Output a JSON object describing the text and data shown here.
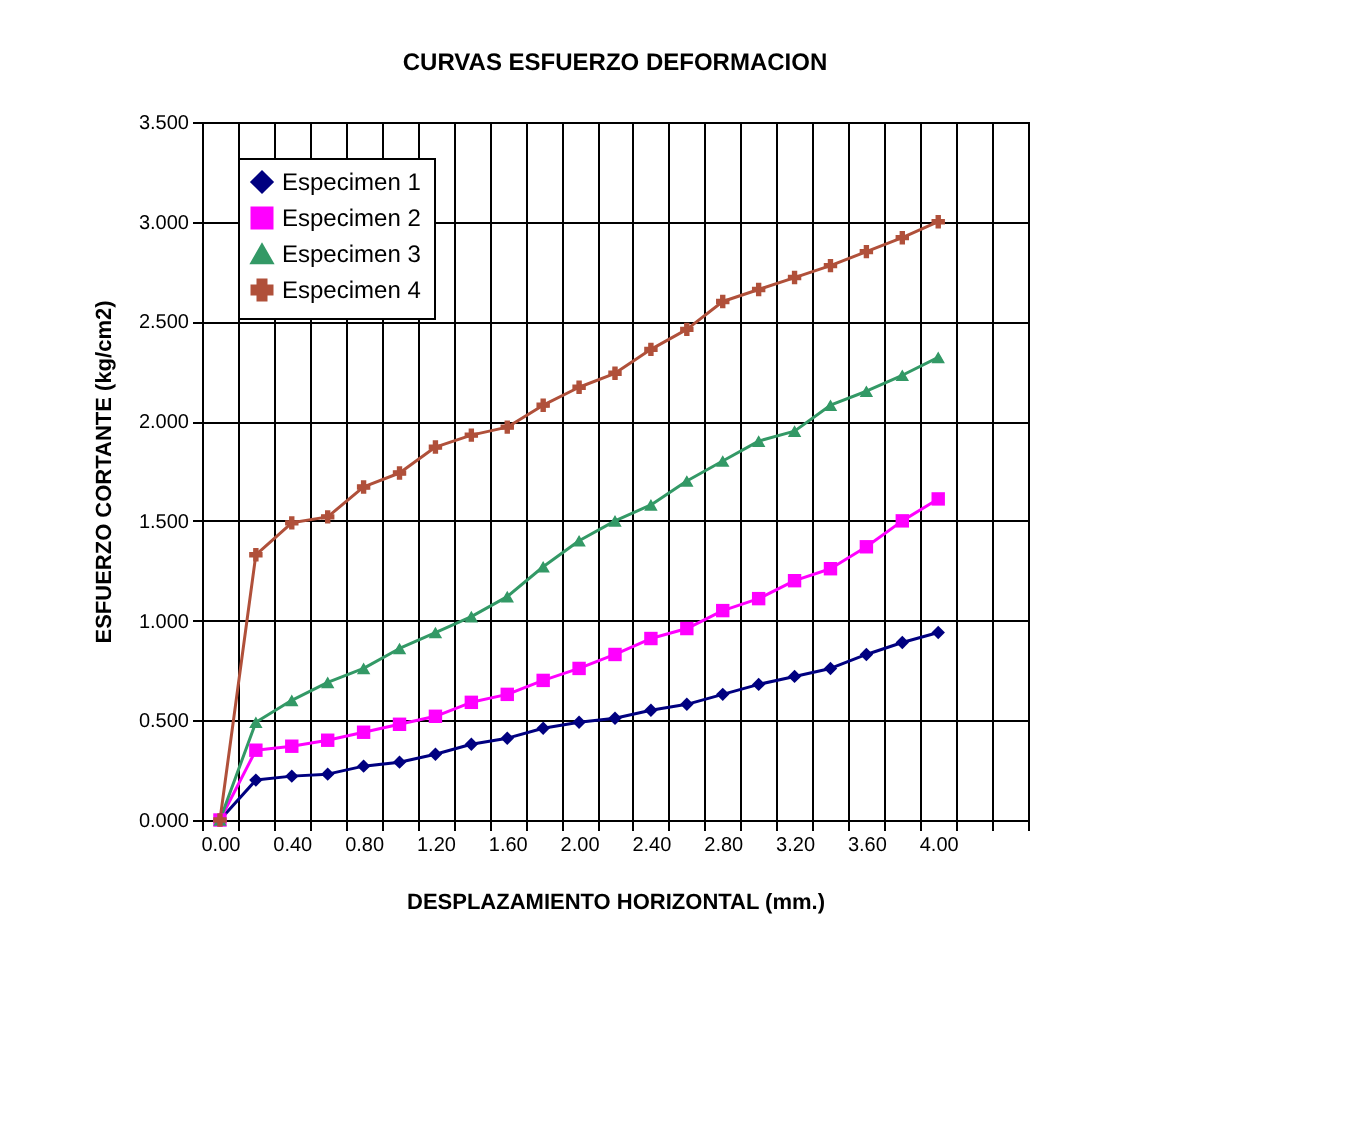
{
  "chart_data": {
    "type": "line",
    "title": "CURVAS ESFUERZO DEFORMACION",
    "xlabel": "DESPLAZAMIENTO HORIZONTAL (mm.)",
    "ylabel": "ESFUERZO CORTANTE (kg/cm2)",
    "categories": [
      "0.00",
      null,
      "0.40",
      null,
      "0.80",
      null,
      "1.20",
      null,
      "1.60",
      null,
      "2.00",
      null,
      "2.40",
      null,
      "2.80",
      null,
      "3.20",
      null,
      "3.60",
      null,
      "4.00",
      null,
      null
    ],
    "ylim": [
      0,
      3.5
    ],
    "yticks": [
      {
        "value": 0,
        "label": "0.000"
      },
      {
        "value": 0.5,
        "label": "0.500"
      },
      {
        "value": 1,
        "label": "1.000"
      },
      {
        "value": 1.5,
        "label": "1.500"
      },
      {
        "value": 2,
        "label": "2.000"
      },
      {
        "value": 2.5,
        "label": "2.500"
      },
      {
        "value": 3,
        "label": "3.000"
      },
      {
        "value": 3.5,
        "label": "3.500"
      }
    ],
    "grid": true,
    "legend": "top left",
    "series": [
      {
        "name": "Especimen 1",
        "color": "#000080",
        "marker": "diamond",
        "values": [
          0,
          0.2,
          0.22,
          0.23,
          0.27,
          0.29,
          0.33,
          0.38,
          0.41,
          0.46,
          0.49,
          0.51,
          0.55,
          0.58,
          0.63,
          0.68,
          0.72,
          0.76,
          0.83,
          0.89,
          0.94,
          null,
          null
        ]
      },
      {
        "name": "Especimen 2",
        "color": "#ff00ff",
        "marker": "square",
        "values": [
          0,
          0.35,
          0.37,
          0.4,
          0.44,
          0.48,
          0.52,
          0.59,
          0.63,
          0.7,
          0.76,
          0.83,
          0.91,
          0.96,
          1.05,
          1.11,
          1.2,
          1.26,
          1.37,
          1.5,
          1.61,
          null,
          null
        ]
      },
      {
        "name": "Especimen 3",
        "color": "#339966",
        "marker": "triangle",
        "values": [
          0,
          0.49,
          0.6,
          0.69,
          0.76,
          0.86,
          0.94,
          1.02,
          1.12,
          1.27,
          1.4,
          1.5,
          1.58,
          1.7,
          1.8,
          1.9,
          1.95,
          2.08,
          2.15,
          2.23,
          2.32,
          null,
          null
        ]
      },
      {
        "name": "Especimen 4",
        "color": "#b0503a",
        "marker": "cross",
        "values": [
          0,
          1.33,
          1.49,
          1.52,
          1.67,
          1.74,
          1.87,
          1.93,
          1.97,
          2.08,
          2.17,
          2.24,
          2.36,
          2.46,
          2.6,
          2.66,
          2.72,
          2.78,
          2.85,
          2.92,
          3.0,
          null,
          null
        ]
      }
    ]
  }
}
